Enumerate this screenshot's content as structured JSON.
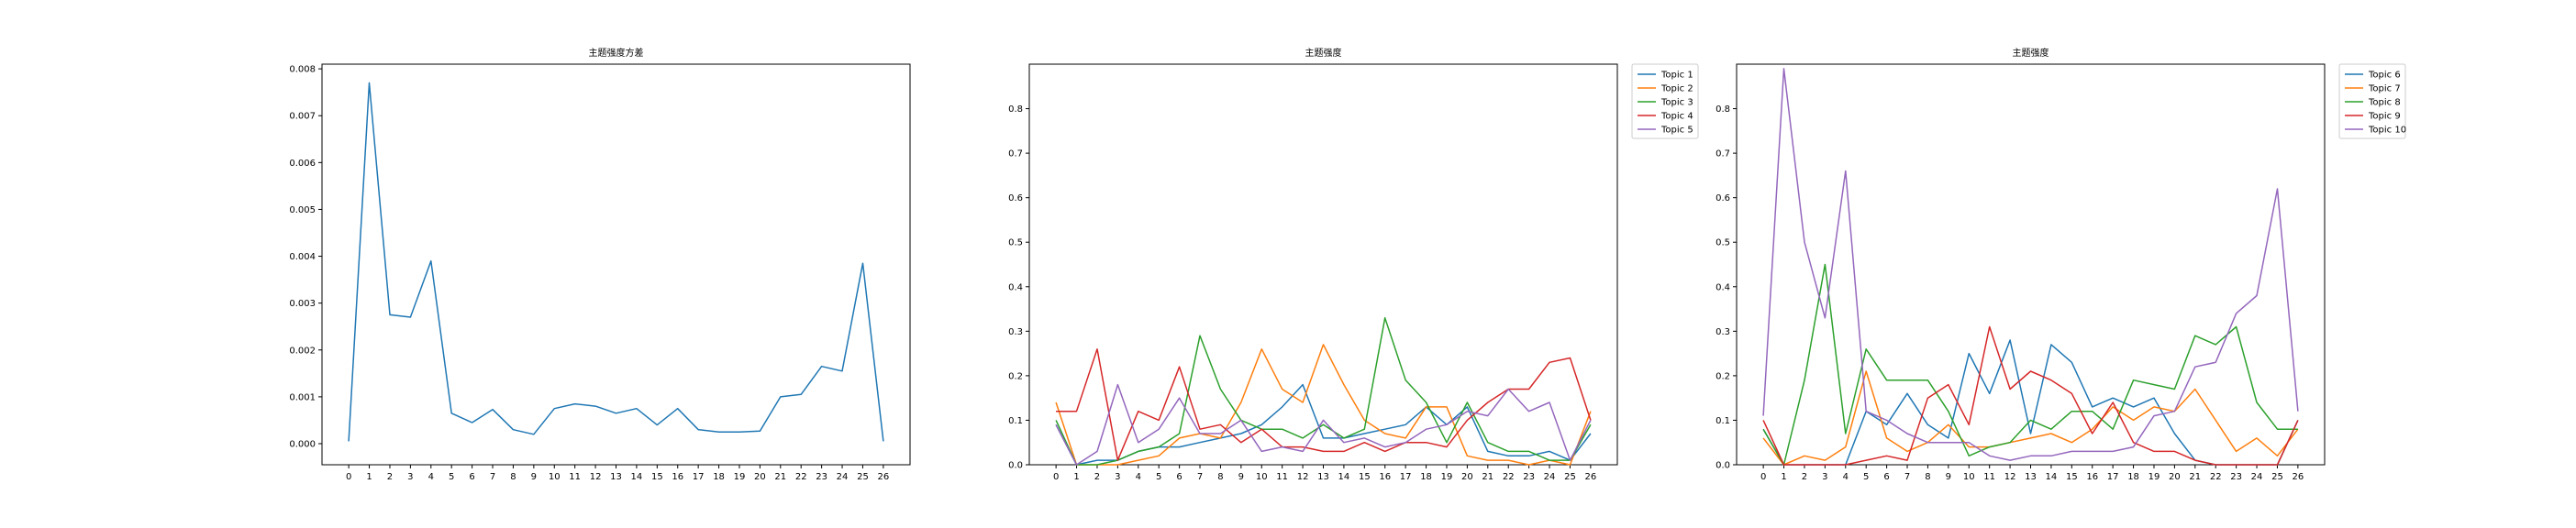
{
  "chart_data": [
    {
      "type": "line",
      "title": "主题强度方差",
      "xlabel": "",
      "ylabel": "",
      "x": [
        0,
        1,
        2,
        3,
        4,
        5,
        6,
        7,
        8,
        9,
        10,
        11,
        12,
        13,
        14,
        15,
        16,
        17,
        18,
        19,
        20,
        21,
        22,
        23,
        24,
        25,
        26
      ],
      "ylim": [
        -0.00045,
        0.0081
      ],
      "yticks": [
        0.0,
        0.001,
        0.002,
        0.003,
        0.004,
        0.005,
        0.006,
        0.007,
        0.008
      ],
      "ytick_labels": [
        "0.000",
        "0.001",
        "0.002",
        "0.003",
        "0.004",
        "0.005",
        "0.006",
        "0.007",
        "0.008"
      ],
      "grid": false,
      "series": [
        {
          "color": "#1f77b4",
          "values": [
            5e-05,
            0.0077,
            0.00275,
            0.0027,
            0.0039,
            0.00065,
            0.00045,
            0.00073,
            0.0003,
            0.0002,
            0.00075,
            0.00085,
            0.0008,
            0.00065,
            0.00075,
            0.0004,
            0.00075,
            0.0003,
            0.00025,
            0.00025,
            0.00027,
            0.001,
            0.00105,
            0.00165,
            0.00155,
            0.00385,
            5e-05
          ]
        }
      ]
    },
    {
      "type": "line",
      "title": "主题强度",
      "xlabel": "",
      "ylabel": "",
      "x": [
        0,
        1,
        2,
        3,
        4,
        5,
        6,
        7,
        8,
        9,
        10,
        11,
        12,
        13,
        14,
        15,
        16,
        17,
        18,
        19,
        20,
        21,
        22,
        23,
        24,
        25,
        26
      ],
      "ylim": [
        0,
        0.9
      ],
      "yticks": [
        0.0,
        0.1,
        0.2,
        0.3,
        0.4,
        0.5,
        0.6,
        0.7,
        0.8
      ],
      "ytick_labels": [
        "0.0",
        "0.1",
        "0.2",
        "0.3",
        "0.4",
        "0.5",
        "0.6",
        "0.7",
        "0.8"
      ],
      "grid": false,
      "legend": "outside-right-top",
      "series": [
        {
          "name": "Topic 1",
          "color": "#1f77b4",
          "values": [
            0.09,
            0.0,
            0.01,
            0.01,
            0.03,
            0.04,
            0.04,
            0.05,
            0.06,
            0.07,
            0.09,
            0.13,
            0.18,
            0.06,
            0.06,
            0.07,
            0.08,
            0.09,
            0.13,
            0.09,
            0.13,
            0.03,
            0.02,
            0.02,
            0.03,
            0.01,
            0.07
          ]
        },
        {
          "name": "Topic 2",
          "color": "#ff7f0e",
          "values": [
            0.14,
            0.0,
            0.0,
            0.0,
            0.01,
            0.02,
            0.06,
            0.07,
            0.06,
            0.14,
            0.26,
            0.17,
            0.14,
            0.27,
            0.18,
            0.1,
            0.07,
            0.06,
            0.13,
            0.13,
            0.02,
            0.01,
            0.01,
            0.0,
            0.01,
            0.0,
            0.12
          ]
        },
        {
          "name": "Topic 3",
          "color": "#2ca02c",
          "values": [
            0.1,
            0.0,
            0.0,
            0.01,
            0.03,
            0.04,
            0.07,
            0.29,
            0.17,
            0.1,
            0.08,
            0.08,
            0.06,
            0.09,
            0.06,
            0.08,
            0.33,
            0.19,
            0.14,
            0.05,
            0.14,
            0.05,
            0.03,
            0.03,
            0.01,
            0.01,
            0.09
          ]
        },
        {
          "name": "Topic 4",
          "color": "#d62728",
          "values": [
            0.12,
            0.12,
            0.26,
            0.01,
            0.12,
            0.1,
            0.22,
            0.08,
            0.09,
            0.05,
            0.08,
            0.04,
            0.04,
            0.03,
            0.03,
            0.05,
            0.03,
            0.05,
            0.05,
            0.04,
            0.1,
            0.14,
            0.17,
            0.17,
            0.23,
            0.24,
            0.1
          ]
        },
        {
          "name": "Topic 5",
          "color": "#9467bd",
          "values": [
            0.09,
            0.0,
            0.03,
            0.18,
            0.05,
            0.08,
            0.15,
            0.07,
            0.07,
            0.1,
            0.03,
            0.04,
            0.03,
            0.1,
            0.05,
            0.06,
            0.04,
            0.05,
            0.08,
            0.09,
            0.12,
            0.11,
            0.17,
            0.12,
            0.14,
            0.01,
            0.1
          ]
        }
      ]
    },
    {
      "type": "line",
      "title": "主题强度",
      "xlabel": "",
      "ylabel": "",
      "x": [
        0,
        1,
        2,
        3,
        4,
        5,
        6,
        7,
        8,
        9,
        10,
        11,
        12,
        13,
        14,
        15,
        16,
        17,
        18,
        19,
        20,
        21,
        22,
        23,
        24,
        25,
        26
      ],
      "ylim": [
        0,
        0.9
      ],
      "yticks": [
        0.0,
        0.1,
        0.2,
        0.3,
        0.4,
        0.5,
        0.6,
        0.7,
        0.8
      ],
      "ytick_labels": [
        "0.0",
        "0.1",
        "0.2",
        "0.3",
        "0.4",
        "0.5",
        "0.6",
        "0.7",
        "0.8"
      ],
      "grid": false,
      "legend": "outside-right-top",
      "series": [
        {
          "name": "Topic 6",
          "color": "#1f77b4",
          "values": [
            0.08,
            0.0,
            0.0,
            0.0,
            0.0,
            0.12,
            0.09,
            0.16,
            0.09,
            0.06,
            0.25,
            0.16,
            0.28,
            0.07,
            0.27,
            0.23,
            0.13,
            0.15,
            0.13,
            0.15,
            0.07,
            0.01,
            0.0,
            0.0,
            0.0,
            0.0,
            0.1
          ]
        },
        {
          "name": "Topic 7",
          "color": "#ff7f0e",
          "values": [
            0.06,
            0.0,
            0.02,
            0.01,
            0.04,
            0.21,
            0.06,
            0.03,
            0.05,
            0.09,
            0.04,
            0.04,
            0.05,
            0.06,
            0.07,
            0.05,
            0.08,
            0.13,
            0.1,
            0.13,
            0.12,
            0.17,
            0.1,
            0.03,
            0.06,
            0.02,
            0.08
          ]
        },
        {
          "name": "Topic 8",
          "color": "#2ca02c",
          "values": [
            0.08,
            0.0,
            0.19,
            0.45,
            0.07,
            0.26,
            0.19,
            0.19,
            0.19,
            0.12,
            0.02,
            0.04,
            0.05,
            0.1,
            0.08,
            0.12,
            0.12,
            0.08,
            0.19,
            0.18,
            0.17,
            0.29,
            0.27,
            0.31,
            0.14,
            0.08,
            0.08
          ]
        },
        {
          "name": "Topic 9",
          "color": "#d62728",
          "values": [
            0.1,
            0.0,
            0.0,
            0.0,
            0.0,
            0.01,
            0.02,
            0.01,
            0.15,
            0.18,
            0.09,
            0.31,
            0.17,
            0.21,
            0.19,
            0.16,
            0.07,
            0.14,
            0.05,
            0.03,
            0.03,
            0.01,
            0.0,
            0.0,
            0.0,
            0.0,
            0.1
          ]
        },
        {
          "name": "Topic 10",
          "color": "#9467bd",
          "values": [
            0.11,
            0.89,
            0.5,
            0.33,
            0.66,
            0.12,
            0.1,
            0.07,
            0.05,
            0.05,
            0.05,
            0.02,
            0.01,
            0.02,
            0.02,
            0.03,
            0.03,
            0.03,
            0.04,
            0.11,
            0.12,
            0.22,
            0.23,
            0.34,
            0.38,
            0.62,
            0.12
          ]
        }
      ]
    }
  ]
}
